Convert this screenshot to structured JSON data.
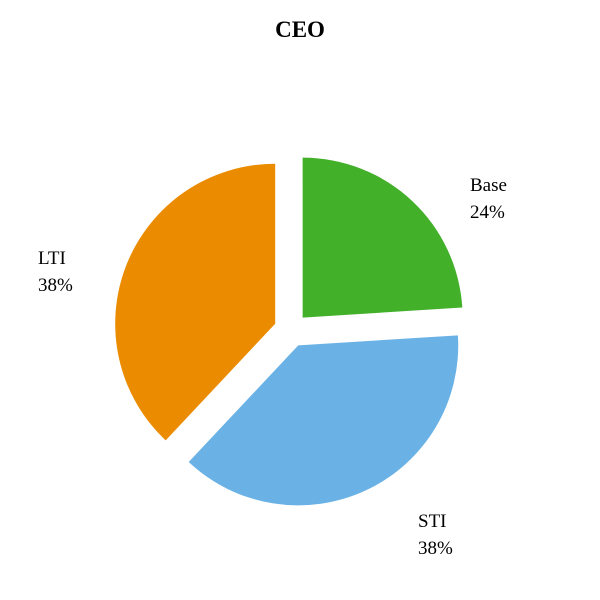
{
  "chart_data": {
    "type": "pie",
    "title": "CEO",
    "slices": [
      {
        "name": "Base",
        "value": 24,
        "label": "24%",
        "color": "#43b02a"
      },
      {
        "name": "STI",
        "value": 38,
        "label": "38%",
        "color": "#6ab2e5"
      },
      {
        "name": "LTI",
        "value": 38,
        "label": "38%",
        "color": "#eb8c00"
      }
    ],
    "exploded": true,
    "start": "12 o'clock, clockwise"
  }
}
